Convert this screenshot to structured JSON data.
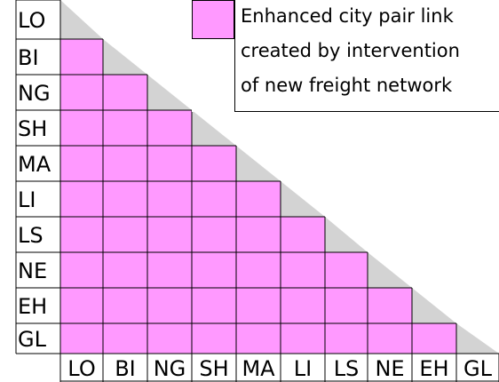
{
  "matrix": {
    "rows": [
      "LO",
      "BI",
      "NG",
      "SH",
      "MA",
      "LI",
      "LS",
      "NE",
      "EH",
      "GL"
    ],
    "columns": [
      "LO",
      "BI",
      "NG",
      "SH",
      "MA",
      "LI",
      "LS",
      "NE",
      "EH",
      "GL"
    ],
    "cell_color": "#ff99ff",
    "diagonal_color": "#d3d3d3"
  },
  "legend": {
    "color": "#ff99ff",
    "lines": [
      "Enhanced city pair link",
      "created by intervention",
      "of new freight network"
    ]
  }
}
